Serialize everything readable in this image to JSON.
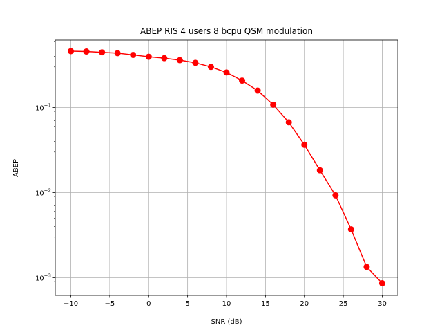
{
  "chart_data": {
    "type": "line",
    "title": "ABEP RIS 4 users 8 bcpu QSM modulation",
    "xlabel": "SNR (dB)",
    "ylabel": "ABEP",
    "xscale": "linear",
    "yscale": "log",
    "xlim": [
      -12,
      32
    ],
    "ylim": [
      0.00062,
      0.62
    ],
    "grid": true,
    "x_ticks": [
      {
        "value": -10,
        "label": "−10"
      },
      {
        "value": -5,
        "label": "−5"
      },
      {
        "value": 0,
        "label": "0"
      },
      {
        "value": 5,
        "label": "5"
      },
      {
        "value": 10,
        "label": "10"
      },
      {
        "value": 15,
        "label": "15"
      },
      {
        "value": 20,
        "label": "20"
      },
      {
        "value": 25,
        "label": "25"
      },
      {
        "value": 30,
        "label": "30"
      }
    ],
    "y_ticks": [
      {
        "value": 0.1,
        "base": "10",
        "exp": "−1"
      },
      {
        "value": 0.01,
        "base": "10",
        "exp": "−2"
      },
      {
        "value": 0.001,
        "base": "10",
        "exp": "−3"
      }
    ],
    "series": [
      {
        "color": "#ff0000",
        "marker": "circle",
        "x": [
          -10,
          -8,
          -6,
          -4,
          -2,
          0,
          2,
          4,
          6,
          8,
          10,
          12,
          14,
          16,
          18,
          20,
          22,
          24,
          26,
          28,
          30
        ],
        "y": [
          0.46,
          0.455,
          0.445,
          0.435,
          0.415,
          0.395,
          0.38,
          0.36,
          0.335,
          0.3,
          0.258,
          0.207,
          0.158,
          0.108,
          0.067,
          0.0365,
          0.0183,
          0.0093,
          0.0037,
          0.00134,
          0.00086
        ]
      }
    ]
  }
}
